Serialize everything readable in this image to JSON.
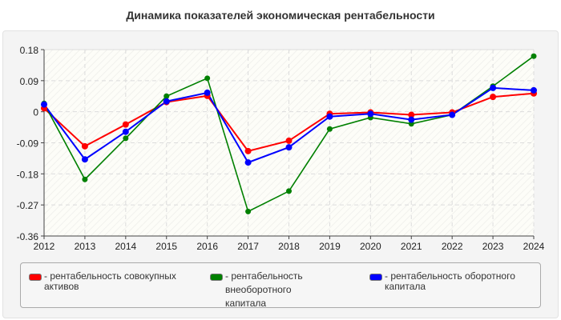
{
  "chart_data": {
    "type": "line",
    "title": "Динамика показателей экономическая рентабельности",
    "xlabel": "",
    "ylabel": "",
    "categories": [
      "2012",
      "2013",
      "2014",
      "2015",
      "2016",
      "2017",
      "2018",
      "2019",
      "2020",
      "2021",
      "2022",
      "2023",
      "2024"
    ],
    "ylim": [
      -0.36,
      0.18
    ],
    "yticks": [
      "0.18",
      "0.09",
      "0",
      "-0.09",
      "-0.18",
      "-0.27",
      "-0.36"
    ],
    "ytick_values": [
      0.18,
      0.09,
      0,
      -0.09,
      -0.18,
      -0.27,
      -0.36
    ],
    "grid": true,
    "legend_position": "bottom",
    "series": [
      {
        "name": "- рентабельность совокупных активов",
        "color": "#ff0000",
        "values": [
          0.01,
          -0.1,
          -0.037,
          0.028,
          0.046,
          -0.114,
          -0.084,
          -0.006,
          -0.002,
          -0.009,
          -0.002,
          0.043,
          0.053
        ]
      },
      {
        "name": "- рентабельность внеоборотного капитала",
        "color": "#008000",
        "values": [
          0.024,
          -0.196,
          -0.077,
          0.045,
          0.097,
          -0.289,
          -0.23,
          -0.05,
          -0.017,
          -0.035,
          -0.009,
          0.074,
          0.161
        ]
      },
      {
        "name": "- рентабельность оборотного капитала",
        "color": "#0000ff",
        "values": [
          0.021,
          -0.138,
          -0.058,
          0.03,
          0.055,
          -0.147,
          -0.103,
          -0.014,
          -0.006,
          -0.023,
          -0.009,
          0.069,
          0.062
        ]
      }
    ]
  }
}
